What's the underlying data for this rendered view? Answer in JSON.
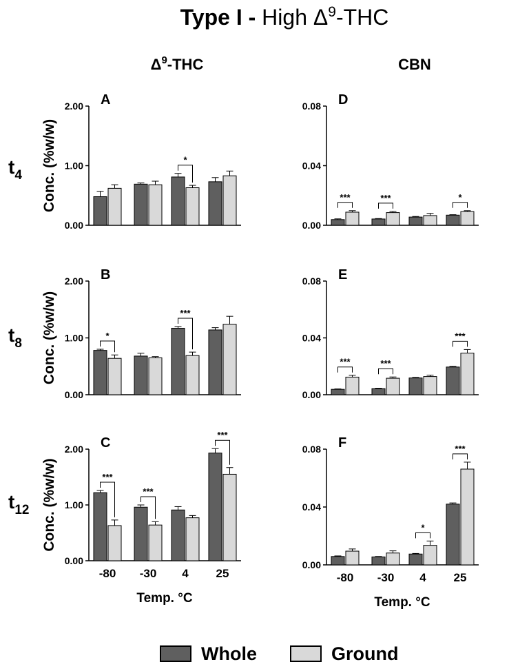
{
  "figure": {
    "title_bold": "Type I - ",
    "title_rest": "High Δ",
    "title_sup": "9",
    "title_end": "-THC"
  },
  "columns": [
    {
      "prefix": "Δ",
      "sup": "9",
      "suffix": "-THC"
    },
    {
      "prefix": "CBN",
      "sup": "",
      "suffix": ""
    }
  ],
  "rows": [
    {
      "main": "t",
      "sub": "4"
    },
    {
      "main": "t",
      "sub": "8"
    },
    {
      "main": "t",
      "sub": "12"
    }
  ],
  "legend": [
    {
      "label": "Whole",
      "color": "#5f5f5f"
    },
    {
      "label": "Ground",
      "color": "#d9d9d9"
    }
  ],
  "colors": {
    "whole": "#5f5f5f",
    "ground": "#d9d9d9",
    "stroke": "#000000"
  },
  "chart_data": [
    {
      "panel": "A",
      "type": "bar",
      "categories": [
        "-80",
        "-30",
        "4",
        "25"
      ],
      "series": [
        {
          "name": "Whole",
          "values": [
            0.48,
            0.69,
            0.81,
            0.73
          ],
          "errors": [
            0.09,
            0.02,
            0.06,
            0.07
          ]
        },
        {
          "name": "Ground",
          "values": [
            0.62,
            0.68,
            0.63,
            0.83
          ],
          "errors": [
            0.06,
            0.06,
            0.04,
            0.08
          ]
        }
      ],
      "ylim": [
        0,
        2.0
      ],
      "yticks": [
        "0.00",
        "1.00",
        "2.00"
      ],
      "ytick_values": [
        0,
        1,
        2
      ],
      "ylabel": "Conc. (%w/w)",
      "xlabel": "",
      "show_xticks": false,
      "significance": [
        {
          "category": "4",
          "label": "*"
        }
      ]
    },
    {
      "panel": "D",
      "type": "bar",
      "categories": [
        "-80",
        "-30",
        "4",
        "25"
      ],
      "series": [
        {
          "name": "Whole",
          "values": [
            0.0038,
            0.0042,
            0.0055,
            0.0068
          ],
          "errors": [
            0.0005,
            0.0003,
            0.0004,
            0.0003
          ]
        },
        {
          "name": "Ground",
          "values": [
            0.0088,
            0.0085,
            0.0065,
            0.0092
          ],
          "errors": [
            0.001,
            0.0008,
            0.0015,
            0.0006
          ]
        }
      ],
      "ylim": [
        0,
        0.08
      ],
      "yticks": [
        "0.00",
        "0.04",
        "0.08"
      ],
      "ytick_values": [
        0,
        0.04,
        0.08
      ],
      "ylabel": "",
      "xlabel": "",
      "show_xticks": false,
      "significance": [
        {
          "category": "-80",
          "label": "***"
        },
        {
          "category": "-30",
          "label": "***"
        },
        {
          "category": "25",
          "label": "*"
        }
      ]
    },
    {
      "panel": "B",
      "type": "bar",
      "categories": [
        "-80",
        "-30",
        "4",
        "25"
      ],
      "series": [
        {
          "name": "Whole",
          "values": [
            0.78,
            0.68,
            1.17,
            1.14
          ],
          "errors": [
            0.02,
            0.05,
            0.03,
            0.04
          ]
        },
        {
          "name": "Ground",
          "values": [
            0.64,
            0.65,
            0.69,
            1.24
          ],
          "errors": [
            0.06,
            0.02,
            0.06,
            0.14
          ]
        }
      ],
      "ylim": [
        0,
        2.0
      ],
      "yticks": [
        "0.00",
        "1.00",
        "2.00"
      ],
      "ytick_values": [
        0,
        1,
        2
      ],
      "ylabel": "Conc. (%w/w)",
      "xlabel": "",
      "show_xticks": false,
      "significance": [
        {
          "category": "-80",
          "label": "*"
        },
        {
          "category": "4",
          "label": "***"
        }
      ]
    },
    {
      "panel": "E",
      "type": "bar",
      "categories": [
        "-80",
        "-30",
        "4",
        "25"
      ],
      "series": [
        {
          "name": "Whole",
          "values": [
            0.0038,
            0.0043,
            0.0118,
            0.0195
          ],
          "errors": [
            0.0003,
            0.0003,
            0.0004,
            0.0005
          ]
        },
        {
          "name": "Ground",
          "values": [
            0.0124,
            0.0116,
            0.0128,
            0.0293
          ],
          "errors": [
            0.0013,
            0.0009,
            0.001,
            0.0025
          ]
        }
      ],
      "ylim": [
        0,
        0.08
      ],
      "yticks": [
        "0.00",
        "0.04",
        "0.08"
      ],
      "ytick_values": [
        0,
        0.04,
        0.08
      ],
      "ylabel": "",
      "xlabel": "",
      "show_xticks": false,
      "significance": [
        {
          "category": "-80",
          "label": "***"
        },
        {
          "category": "-30",
          "label": "***"
        },
        {
          "category": "25",
          "label": "***"
        }
      ]
    },
    {
      "panel": "C",
      "type": "bar",
      "categories": [
        "-80",
        "-30",
        "4",
        "25"
      ],
      "series": [
        {
          "name": "Whole",
          "values": [
            1.22,
            0.96,
            0.91,
            1.93
          ],
          "errors": [
            0.04,
            0.04,
            0.06,
            0.08
          ]
        },
        {
          "name": "Ground",
          "values": [
            0.63,
            0.64,
            0.77,
            1.55
          ],
          "errors": [
            0.1,
            0.06,
            0.04,
            0.12
          ]
        }
      ],
      "ylim": [
        0,
        2.0
      ],
      "yticks": [
        "0.00",
        "1.00",
        "2.00"
      ],
      "ytick_values": [
        0,
        1,
        2
      ],
      "ylabel": "Conc. (%w/w)",
      "xlabel": "Temp. °C",
      "show_xticks": true,
      "significance": [
        {
          "category": "-80",
          "label": "***"
        },
        {
          "category": "-30",
          "label": "***"
        },
        {
          "category": "25",
          "label": "***"
        }
      ]
    },
    {
      "panel": "F",
      "type": "bar",
      "categories": [
        "-80",
        "-30",
        "4",
        "25"
      ],
      "series": [
        {
          "name": "Whole",
          "values": [
            0.0058,
            0.0055,
            0.0075,
            0.042
          ],
          "errors": [
            0.0004,
            0.0003,
            0.0004,
            0.0008
          ]
        },
        {
          "name": "Ground",
          "values": [
            0.0095,
            0.0082,
            0.0135,
            0.0662
          ],
          "errors": [
            0.0015,
            0.0015,
            0.003,
            0.0048
          ]
        }
      ],
      "ylim": [
        0,
        0.08
      ],
      "yticks": [
        "0.00",
        "0.04",
        "0.08"
      ],
      "ytick_values": [
        0,
        0.04,
        0.08
      ],
      "ylabel": "",
      "xlabel": "Temp. °C",
      "show_xticks": true,
      "significance": [
        {
          "category": "4",
          "label": "*"
        },
        {
          "category": "25",
          "label": "***"
        }
      ]
    }
  ]
}
